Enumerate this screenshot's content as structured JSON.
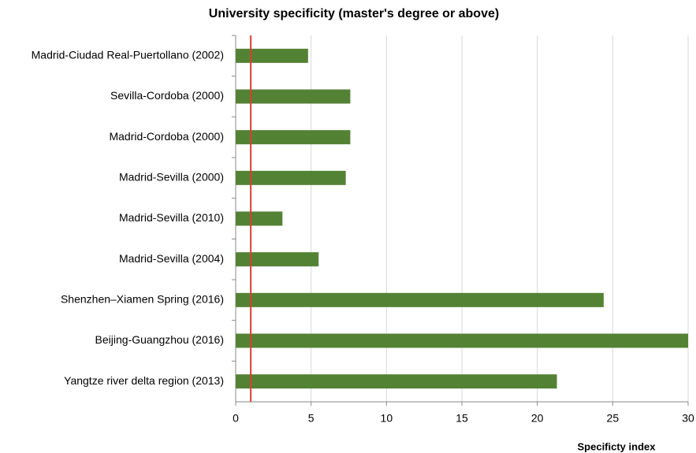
{
  "chart_data": {
    "type": "bar",
    "orientation": "horizontal",
    "title": "University specificity (master's degree or above)",
    "x_label": "Specificty index",
    "categories": [
      "Madrid-Ciudad Real-Puertollano (2002)",
      "Sevilla-Cordoba (2000)",
      "Madrid-Cordoba (2000)",
      "Madrid-Sevilla (2000)",
      "Madrid-Sevilla (2010)",
      "Madrid-Sevilla (2004)",
      "Shenzhen–Xiamen Spring (2016)",
      "Beijing-Guangzhou (2016)",
      "Yangtze river delta region (2013)"
    ],
    "values": [
      4.8,
      7.6,
      7.6,
      7.3,
      3.1,
      5.5,
      24.4,
      30,
      21.3
    ],
    "color": "#548235",
    "xlim": [
      0,
      30
    ],
    "xticks": [
      0,
      5,
      10,
      15,
      20,
      25,
      30
    ],
    "grid": true,
    "reference_line": {
      "value": 1,
      "color": "#e03c31"
    }
  }
}
